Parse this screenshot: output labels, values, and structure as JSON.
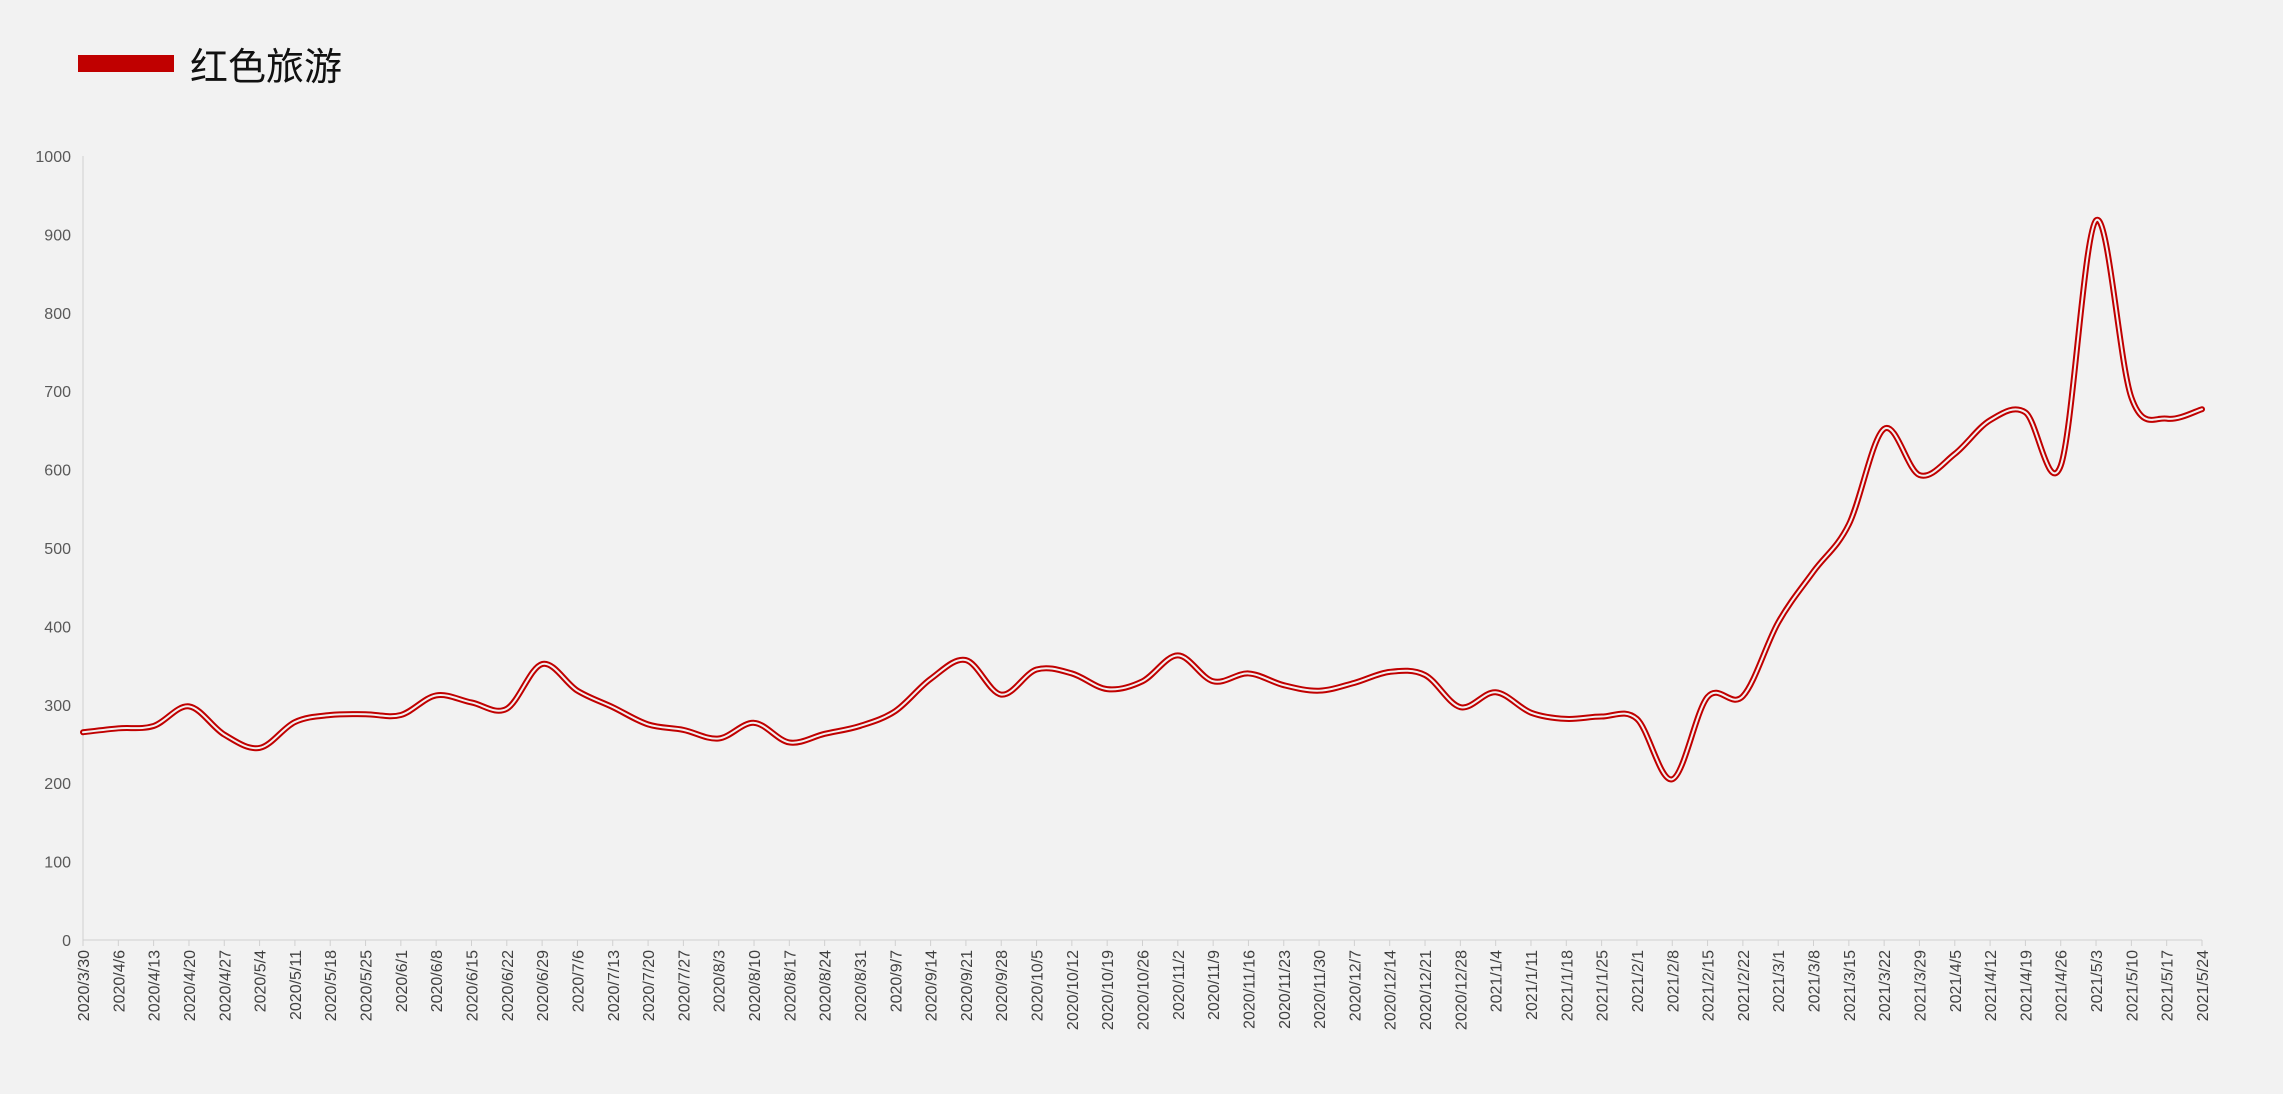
{
  "chart_data": {
    "type": "line",
    "legend": {
      "position": "top-left"
    },
    "ylim": [
      0,
      1000
    ],
    "yticks": [
      0,
      100,
      200,
      300,
      400,
      500,
      600,
      700,
      800,
      900,
      1000
    ],
    "grid": false,
    "series": [
      {
        "name": "红色旅游",
        "color": "#c00000",
        "x": [
          "2020/3/30",
          "2020/4/6",
          "2020/4/13",
          "2020/4/20",
          "2020/4/27",
          "2020/5/4",
          "2020/5/11",
          "2020/5/18",
          "2020/5/25",
          "2020/6/1",
          "2020/6/8",
          "2020/6/15",
          "2020/6/22",
          "2020/6/29",
          "2020/7/6",
          "2020/7/13",
          "2020/7/20",
          "2020/7/27",
          "2020/8/3",
          "2020/8/10",
          "2020/8/17",
          "2020/8/24",
          "2020/8/31",
          "2020/9/7",
          "2020/9/14",
          "2020/9/21",
          "2020/9/28",
          "2020/10/5",
          "2020/10/12",
          "2020/10/19",
          "2020/10/26",
          "2020/11/2",
          "2020/11/9",
          "2020/11/16",
          "2020/11/23",
          "2020/11/30",
          "2020/12/7",
          "2020/12/14",
          "2020/12/21",
          "2020/12/28",
          "2021/1/4",
          "2021/1/11",
          "2021/1/18",
          "2021/1/25",
          "2021/2/1",
          "2021/2/8",
          "2021/2/15",
          "2021/2/22",
          "2021/3/1",
          "2021/3/8",
          "2021/3/15",
          "2021/3/22",
          "2021/3/29",
          "2021/4/5",
          "2021/4/12",
          "2021/4/19",
          "2021/4/26",
          "2021/5/3",
          "2021/5/10",
          "2021/5/17",
          "2021/5/24"
        ],
        "values": [
          265,
          270,
          273,
          298,
          262,
          245,
          278,
          287,
          288,
          287,
          312,
          303,
          295,
          352,
          318,
          297,
          275,
          268,
          257,
          277,
          252,
          263,
          273,
          292,
          333,
          357,
          313,
          345,
          340,
          320,
          330,
          363,
          330,
          340,
          325,
          318,
          328,
          342,
          338,
          297,
          316,
          290,
          282,
          285,
          282,
          205,
          310,
          311,
          405,
          470,
          530,
          652,
          593,
          620,
          663,
          673,
          605,
          918,
          692,
          665,
          677
        ]
      }
    ]
  }
}
